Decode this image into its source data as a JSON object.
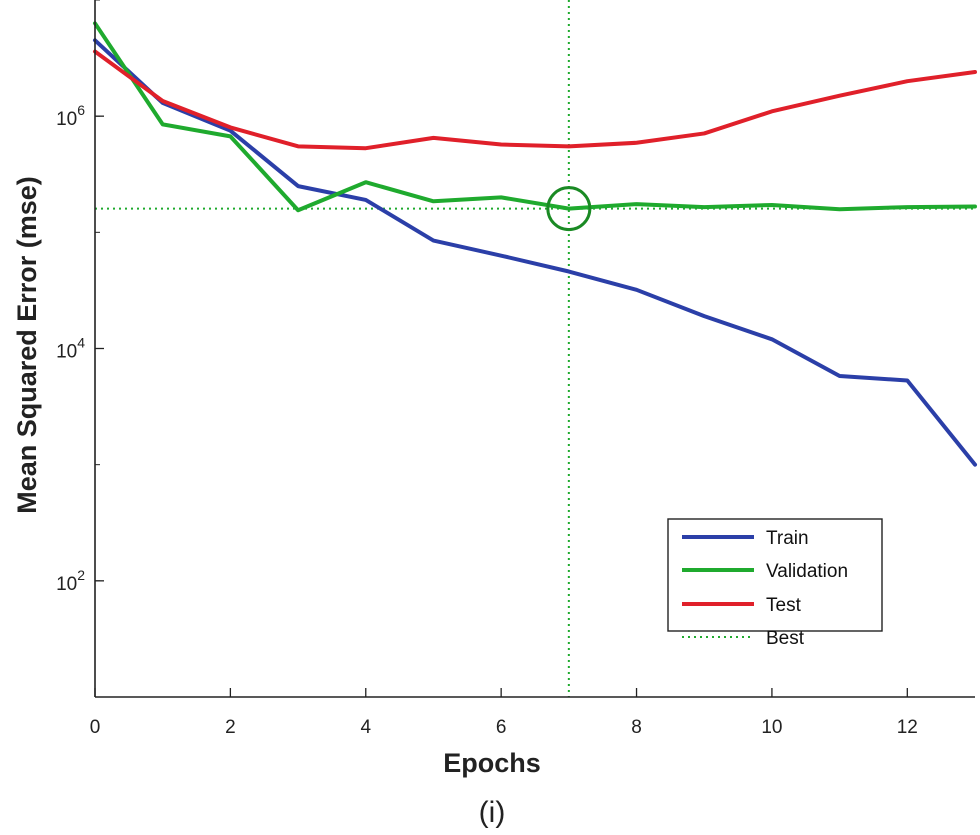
{
  "chart_data": {
    "type": "line",
    "title": "",
    "xlabel": "Epochs",
    "ylabel": "Mean Squared Error  (mse)",
    "caption": "(i)",
    "xlim": [
      0,
      13
    ],
    "ylim": [
      10,
      10000000
    ],
    "yscale": "log",
    "x_ticks": [
      0,
      2,
      4,
      6,
      8,
      10,
      12
    ],
    "y_ticks": [
      {
        "value": 100,
        "base": "10",
        "exp": "2"
      },
      {
        "value": 10000,
        "base": "10",
        "exp": "4"
      },
      {
        "value": 1000000,
        "base": "10",
        "exp": "6"
      }
    ],
    "x": [
      0,
      1,
      2,
      3,
      4,
      5,
      6,
      7,
      8,
      9,
      10,
      11,
      12,
      13
    ],
    "series": [
      {
        "name": "Train",
        "color": "#2b3fa8",
        "style": "solid",
        "values": [
          4500000,
          1300000,
          750000,
          250000,
          190000,
          85000,
          63000,
          46000,
          32000,
          19000,
          12000,
          5800,
          5300,
          1000
        ]
      },
      {
        "name": "Validation",
        "color": "#1faa2e",
        "style": "solid",
        "values": [
          6300000,
          850000,
          670000,
          155000,
          270000,
          185000,
          200000,
          160000,
          175000,
          165000,
          172000,
          158000,
          165000,
          167000
        ]
      },
      {
        "name": "Test",
        "color": "#e0202a",
        "style": "solid",
        "values": [
          3600000,
          1350000,
          800000,
          550000,
          530000,
          650000,
          570000,
          550000,
          590000,
          710000,
          1100000,
          1500000,
          2000000,
          2400000
        ]
      },
      {
        "name": "Best",
        "color": "#1faa2e",
        "style": "dotted"
      }
    ],
    "best": {
      "epoch": 7,
      "value": 160000
    },
    "legend_position": "bottom-right"
  }
}
